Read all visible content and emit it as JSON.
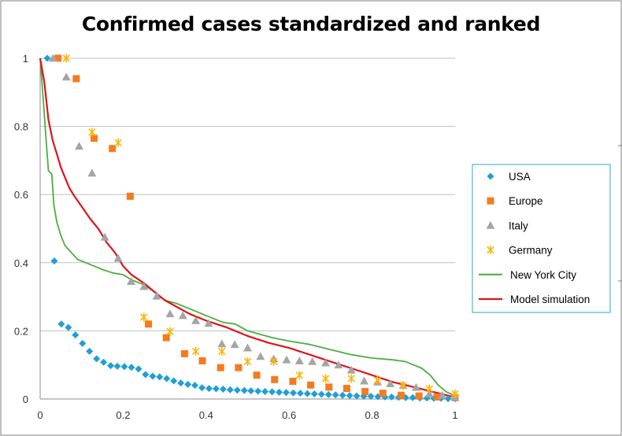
{
  "chart_data": {
    "type": "scatter",
    "title": "Confirmed cases standardized and ranked",
    "xlabel": "",
    "ylabel": "",
    "xlim": [
      0,
      1
    ],
    "ylim": [
      0,
      1
    ],
    "x_ticks": [
      "0",
      "0.2",
      "0.4",
      "0.6",
      "0.8",
      "1"
    ],
    "y_ticks": [
      "0",
      "0.2",
      "0.4",
      "0.6",
      "0.8",
      "1"
    ],
    "grid": "horizontal",
    "legend_position": "right",
    "series": [
      {
        "name": "USA",
        "kind": "marker",
        "marker": "diamond",
        "color": "#1f9fd6",
        "points": [
          [
            0.017,
            1.0
          ],
          [
            0.034,
            0.405
          ],
          [
            0.051,
            0.22
          ],
          [
            0.068,
            0.21
          ],
          [
            0.085,
            0.188
          ],
          [
            0.102,
            0.163
          ],
          [
            0.119,
            0.14
          ],
          [
            0.136,
            0.118
          ],
          [
            0.153,
            0.108
          ],
          [
            0.17,
            0.098
          ],
          [
            0.186,
            0.096
          ],
          [
            0.203,
            0.095
          ],
          [
            0.22,
            0.093
          ],
          [
            0.237,
            0.088
          ],
          [
            0.254,
            0.072
          ],
          [
            0.271,
            0.067
          ],
          [
            0.288,
            0.065
          ],
          [
            0.305,
            0.06
          ],
          [
            0.322,
            0.053
          ],
          [
            0.339,
            0.047
          ],
          [
            0.356,
            0.043
          ],
          [
            0.373,
            0.04
          ],
          [
            0.39,
            0.033
          ],
          [
            0.407,
            0.031
          ],
          [
            0.424,
            0.03
          ],
          [
            0.441,
            0.029
          ],
          [
            0.458,
            0.027
          ],
          [
            0.475,
            0.026
          ],
          [
            0.492,
            0.025
          ],
          [
            0.508,
            0.024
          ],
          [
            0.525,
            0.023
          ],
          [
            0.542,
            0.022
          ],
          [
            0.559,
            0.021
          ],
          [
            0.576,
            0.02
          ],
          [
            0.593,
            0.019
          ],
          [
            0.61,
            0.018
          ],
          [
            0.627,
            0.017
          ],
          [
            0.644,
            0.016
          ],
          [
            0.661,
            0.015
          ],
          [
            0.678,
            0.014
          ],
          [
            0.695,
            0.013
          ],
          [
            0.712,
            0.012
          ],
          [
            0.729,
            0.011
          ],
          [
            0.746,
            0.01
          ],
          [
            0.763,
            0.009
          ],
          [
            0.78,
            0.008
          ],
          [
            0.797,
            0.008
          ],
          [
            0.814,
            0.007
          ],
          [
            0.831,
            0.006
          ],
          [
            0.847,
            0.006
          ],
          [
            0.864,
            0.005
          ],
          [
            0.881,
            0.004
          ],
          [
            0.898,
            0.004
          ],
          [
            0.915,
            0.003
          ],
          [
            0.932,
            0.003
          ],
          [
            0.949,
            0.002
          ],
          [
            0.966,
            0.002
          ],
          [
            0.983,
            0.001
          ],
          [
            1.0,
            0.001
          ]
        ]
      },
      {
        "name": "Europe",
        "kind": "marker",
        "marker": "square",
        "color": "#f47b20",
        "points": [
          [
            0.043,
            1.0
          ],
          [
            0.087,
            0.94
          ],
          [
            0.13,
            0.765
          ],
          [
            0.174,
            0.735
          ],
          [
            0.217,
            0.595
          ],
          [
            0.261,
            0.22
          ],
          [
            0.304,
            0.18
          ],
          [
            0.348,
            0.133
          ],
          [
            0.391,
            0.112
          ],
          [
            0.435,
            0.092
          ],
          [
            0.478,
            0.092
          ],
          [
            0.522,
            0.07
          ],
          [
            0.565,
            0.057
          ],
          [
            0.609,
            0.052
          ],
          [
            0.652,
            0.041
          ],
          [
            0.696,
            0.035
          ],
          [
            0.739,
            0.031
          ],
          [
            0.783,
            0.022
          ],
          [
            0.826,
            0.017
          ],
          [
            0.87,
            0.011
          ],
          [
            0.913,
            0.009
          ],
          [
            0.957,
            0.006
          ],
          [
            1.0,
            0.004
          ]
        ]
      },
      {
        "name": "Italy",
        "kind": "marker",
        "marker": "triangle",
        "color": "#a5a5a5",
        "points": [
          [
            0.031,
            1.0
          ],
          [
            0.063,
            0.945
          ],
          [
            0.094,
            0.742
          ],
          [
            0.125,
            0.663
          ],
          [
            0.156,
            0.475
          ],
          [
            0.188,
            0.413
          ],
          [
            0.219,
            0.345
          ],
          [
            0.25,
            0.33
          ],
          [
            0.281,
            0.302
          ],
          [
            0.313,
            0.25
          ],
          [
            0.344,
            0.245
          ],
          [
            0.375,
            0.23
          ],
          [
            0.406,
            0.222
          ],
          [
            0.438,
            0.162
          ],
          [
            0.469,
            0.16
          ],
          [
            0.5,
            0.15
          ],
          [
            0.531,
            0.125
          ],
          [
            0.563,
            0.118
          ],
          [
            0.594,
            0.115
          ],
          [
            0.625,
            0.112
          ],
          [
            0.656,
            0.11
          ],
          [
            0.688,
            0.106
          ],
          [
            0.719,
            0.1
          ],
          [
            0.75,
            0.085
          ],
          [
            0.781,
            0.053
          ],
          [
            0.813,
            0.05
          ],
          [
            0.844,
            0.045
          ],
          [
            0.875,
            0.04
          ],
          [
            0.906,
            0.034
          ],
          [
            0.938,
            0.015
          ],
          [
            0.969,
            0.011
          ],
          [
            1.0,
            0.005
          ]
        ]
      },
      {
        "name": "Germany",
        "kind": "marker",
        "marker": "asterisk",
        "color": "#ffb400",
        "points": [
          [
            0.063,
            1.0
          ],
          [
            0.125,
            0.783
          ],
          [
            0.188,
            0.752
          ],
          [
            0.25,
            0.24
          ],
          [
            0.313,
            0.198
          ],
          [
            0.375,
            0.14
          ],
          [
            0.438,
            0.14
          ],
          [
            0.5,
            0.11
          ],
          [
            0.563,
            0.11
          ],
          [
            0.625,
            0.07
          ],
          [
            0.688,
            0.06
          ],
          [
            0.75,
            0.06
          ],
          [
            0.813,
            0.055
          ],
          [
            0.875,
            0.04
          ],
          [
            0.938,
            0.03
          ],
          [
            1.0,
            0.015
          ]
        ]
      },
      {
        "name": "New York City",
        "kind": "line",
        "color": "#4caf3e",
        "points": [
          [
            0.0,
            1.0
          ],
          [
            0.008,
            0.87
          ],
          [
            0.015,
            0.75
          ],
          [
            0.02,
            0.67
          ],
          [
            0.028,
            0.66
          ],
          [
            0.033,
            0.57
          ],
          [
            0.04,
            0.52
          ],
          [
            0.05,
            0.48
          ],
          [
            0.06,
            0.45
          ],
          [
            0.075,
            0.43
          ],
          [
            0.09,
            0.41
          ],
          [
            0.11,
            0.4
          ],
          [
            0.13,
            0.39
          ],
          [
            0.15,
            0.38
          ],
          [
            0.175,
            0.37
          ],
          [
            0.2,
            0.365
          ],
          [
            0.22,
            0.35
          ],
          [
            0.25,
            0.335
          ],
          [
            0.28,
            0.31
          ],
          [
            0.3,
            0.29
          ],
          [
            0.33,
            0.28
          ],
          [
            0.36,
            0.265
          ],
          [
            0.39,
            0.25
          ],
          [
            0.42,
            0.235
          ],
          [
            0.44,
            0.225
          ],
          [
            0.47,
            0.22
          ],
          [
            0.5,
            0.2
          ],
          [
            0.53,
            0.19
          ],
          [
            0.56,
            0.18
          ],
          [
            0.6,
            0.17
          ],
          [
            0.65,
            0.16
          ],
          [
            0.7,
            0.145
          ],
          [
            0.75,
            0.13
          ],
          [
            0.8,
            0.12
          ],
          [
            0.85,
            0.115
          ],
          [
            0.88,
            0.11
          ],
          [
            0.9,
            0.1
          ],
          [
            0.92,
            0.09
          ],
          [
            0.94,
            0.07
          ],
          [
            0.96,
            0.04
          ],
          [
            0.98,
            0.02
          ],
          [
            1.0,
            0.01
          ]
        ]
      },
      {
        "name": "Model simulation",
        "kind": "line",
        "color": "#e0131a",
        "points": [
          [
            0.0,
            1.0
          ],
          [
            0.01,
            0.93
          ],
          [
            0.02,
            0.82
          ],
          [
            0.03,
            0.76
          ],
          [
            0.04,
            0.72
          ],
          [
            0.05,
            0.68
          ],
          [
            0.06,
            0.65
          ],
          [
            0.07,
            0.62
          ],
          [
            0.08,
            0.6
          ],
          [
            0.1,
            0.565
          ],
          [
            0.12,
            0.53
          ],
          [
            0.14,
            0.5
          ],
          [
            0.16,
            0.46
          ],
          [
            0.18,
            0.43
          ],
          [
            0.2,
            0.39
          ],
          [
            0.22,
            0.365
          ],
          [
            0.25,
            0.34
          ],
          [
            0.28,
            0.31
          ],
          [
            0.3,
            0.29
          ],
          [
            0.33,
            0.27
          ],
          [
            0.36,
            0.25
          ],
          [
            0.4,
            0.23
          ],
          [
            0.45,
            0.21
          ],
          [
            0.5,
            0.185
          ],
          [
            0.55,
            0.165
          ],
          [
            0.6,
            0.15
          ],
          [
            0.65,
            0.13
          ],
          [
            0.7,
            0.11
          ],
          [
            0.75,
            0.09
          ],
          [
            0.8,
            0.07
          ],
          [
            0.85,
            0.05
          ],
          [
            0.9,
            0.035
          ],
          [
            0.95,
            0.02
          ],
          [
            1.0,
            0.005
          ]
        ]
      }
    ]
  }
}
